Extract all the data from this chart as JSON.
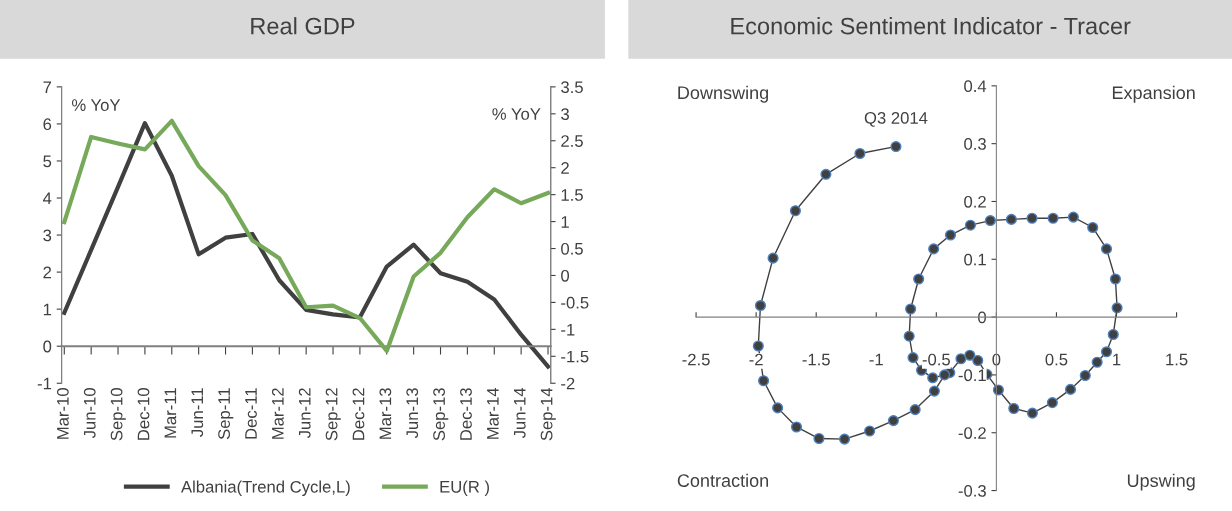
{
  "chart_data": [
    {
      "type": "line",
      "title": "Real GDP",
      "ylabel": "% YoY",
      "y2label": "% YoY",
      "categories": [
        "Mar-10",
        "Jun-10",
        "Sep-10",
        "Dec-10",
        "Mar-11",
        "Jun-11",
        "Sep-11",
        "Dec-11",
        "Mar-12",
        "Jun-12",
        "Sep-12",
        "Dec-12",
        "Mar-13",
        "Jun-13",
        "Sep-13",
        "Dec-13",
        "Mar-14",
        "Jun-14",
        "Sep-14"
      ],
      "series": [
        {
          "name": "Albania(Trend Cycle,L)",
          "color": "#404040",
          "values": [
            0.9,
            2.6,
            4.3,
            6.02,
            4.6,
            2.48,
            2.93,
            3.03,
            1.78,
            0.98,
            0.86,
            0.78,
            2.15,
            2.74,
            1.97,
            1.74,
            1.26,
            0.31,
            -0.55
          ]
        },
        {
          "name": "EU(R )",
          "color": "#77a95b",
          "axis": "y2",
          "values": [
            0.99,
            2.57,
            2.45,
            2.34,
            2.87,
            2.03,
            1.49,
            0.65,
            0.32,
            -0.59,
            -0.56,
            -0.79,
            -1.4,
            -0.02,
            0.42,
            1.08,
            1.6,
            1.34,
            1.53
          ]
        }
      ],
      "ylim": [
        -1,
        7
      ],
      "yticks": [
        -1,
        0,
        1,
        2,
        3,
        4,
        5,
        6,
        7
      ],
      "y2lim": [
        -2,
        3.5
      ],
      "y2ticks": [
        -2,
        -1.5,
        -1,
        -0.5,
        0,
        0.5,
        1,
        1.5,
        2,
        2.5,
        3,
        3.5
      ],
      "legend": "bottom",
      "grid": false,
      "marker": "none",
      "line_style": "solid"
    },
    {
      "type": "line",
      "title": "Economic Sentiment Indicator - Tracer",
      "annotations": [
        "Downswing",
        "Expansion",
        "Contraction",
        "Upswing",
        {
          "text": "Q3 2014",
          "x": -0.836,
          "y": 0.295
        }
      ],
      "series": [
        {
          "color": "#404040",
          "x": [
            -0.388,
            -0.295,
            -0.221,
            -0.155,
            -0.079,
            0.017,
            0.145,
            0.3,
            0.466,
            0.617,
            0.74,
            0.839,
            0.917,
            0.973,
            1.005,
            0.991,
            0.917,
            0.802,
            0.641,
            0.472,
            0.297,
            0.125,
            -0.05,
            -0.216,
            -0.382,
            -0.522,
            -0.647,
            -0.714,
            -0.726,
            -0.694,
            -0.623,
            -0.53,
            -0.431,
            -0.516,
            -0.676,
            -0.857,
            -1.055,
            -1.264,
            -1.477,
            -1.664,
            -1.821,
            -1.938,
            -1.982,
            -1.964,
            -1.859,
            -1.673,
            -1.419,
            -1.136,
            -0.836
          ],
          "values": [
            -0.096,
            -0.072,
            -0.066,
            -0.075,
            -0.099,
            -0.126,
            -0.158,
            -0.166,
            -0.148,
            -0.125,
            -0.101,
            -0.078,
            -0.06,
            -0.03,
            0.016,
            0.066,
            0.118,
            0.155,
            0.173,
            0.171,
            0.171,
            0.169,
            0.167,
            0.159,
            0.142,
            0.118,
            0.066,
            0.014,
            -0.033,
            -0.07,
            -0.092,
            -0.105,
            -0.1,
            -0.128,
            -0.16,
            -0.179,
            -0.197,
            -0.211,
            -0.21,
            -0.19,
            -0.157,
            -0.11,
            -0.05,
            0.02,
            0.102,
            0.184,
            0.247,
            0.283,
            0.295
          ]
        }
      ],
      "xlim": [
        -2.5,
        1.5
      ],
      "xticks": [
        -2.5,
        -2,
        -1.5,
        -1,
        -0.5,
        0,
        0.5,
        1,
        1.5
      ],
      "ylim": [
        -0.3,
        0.4
      ],
      "yticks": [
        -0.3,
        -0.2,
        -0.1,
        0,
        0.1,
        0.2,
        0.3,
        0.4
      ],
      "grid": false,
      "marker": "circle",
      "line_style": "solid"
    }
  ]
}
